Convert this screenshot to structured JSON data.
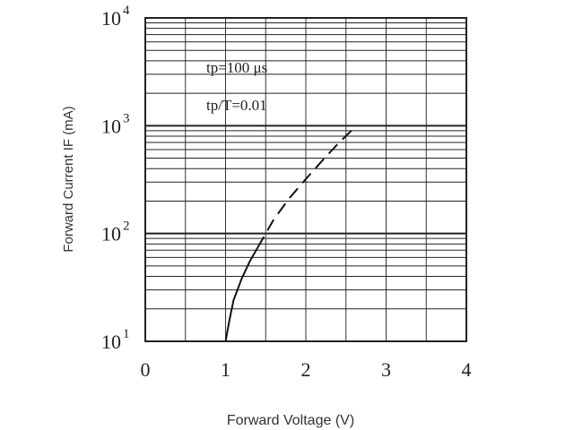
{
  "chart_data": {
    "type": "line",
    "xlabel": "Forward Voltage (V)",
    "ylabel": "Forward Current IF (mA)",
    "xlim": [
      0,
      4
    ],
    "ylim": [
      10,
      10000
    ],
    "y_scale": "log",
    "grid": true,
    "x_ticks": [
      "0",
      "1",
      "2",
      "3",
      "4"
    ],
    "y_ticks": [
      {
        "base": "10",
        "exp": "1"
      },
      {
        "base": "10",
        "exp": "2"
      },
      {
        "base": "10",
        "exp": "3"
      },
      {
        "base": "10",
        "exp": "4"
      }
    ],
    "annotations": [
      "tp=100 μs",
      "tp/T=0.01"
    ],
    "series": [
      {
        "style": "solid",
        "x": [
          1.0,
          1.05,
          1.1,
          1.2,
          1.3,
          1.4
        ],
        "y": [
          10,
          16,
          24,
          38,
          55,
          74
        ]
      },
      {
        "style": "dashed",
        "x": [
          1.4,
          1.6,
          1.8,
          2.0,
          2.2,
          2.4,
          2.6
        ],
        "y": [
          74,
          135,
          215,
          320,
          470,
          680,
          950
        ]
      }
    ]
  }
}
